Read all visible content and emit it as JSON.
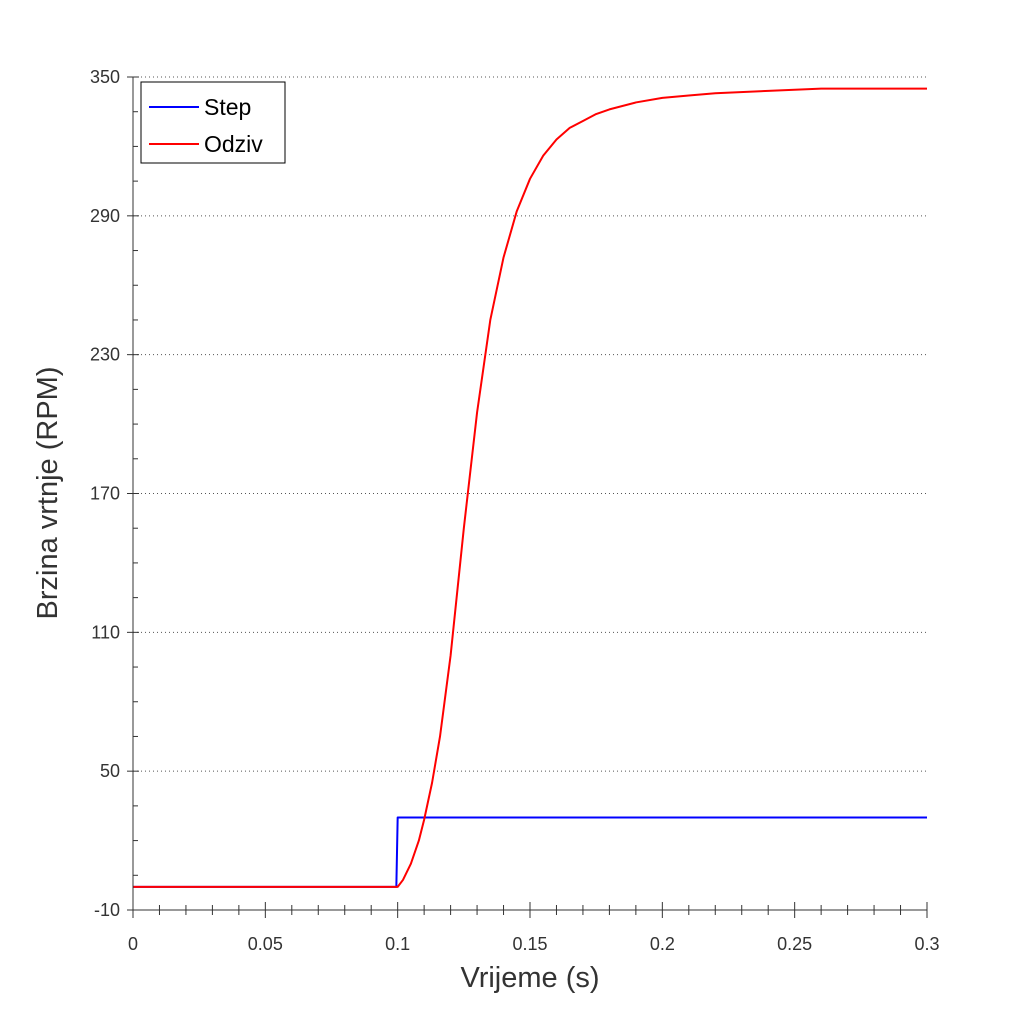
{
  "chart_data": {
    "type": "line",
    "title": "",
    "xlabel": "Vrijeme (s)",
    "ylabel": "Brzina vrtnje (RPM)",
    "xlim": [
      0,
      0.3
    ],
    "ylim": [
      -10,
      350
    ],
    "xticks": [
      0,
      0.05,
      0.1,
      0.15,
      0.2,
      0.25,
      0.3
    ],
    "xtick_labels": [
      "0",
      "0.05",
      "0.1",
      "0.15",
      "0.2",
      "0.25",
      "0.3"
    ],
    "yticks": [
      -10,
      50,
      110,
      170,
      230,
      290,
      350
    ],
    "ytick_labels": [
      "-10",
      "50",
      "110",
      "170",
      "230",
      "290",
      "350"
    ],
    "grid": "horizontal-dotted",
    "legend": {
      "position": "top-left",
      "entries": [
        "Step",
        "Odziv"
      ]
    },
    "series": [
      {
        "name": "Step",
        "color": "#0000ff",
        "x": [
          0,
          0.0995,
          0.1,
          0.3
        ],
        "y": [
          0,
          0,
          30,
          30
        ]
      },
      {
        "name": "Odziv",
        "color": "#ff0000",
        "x": [
          0,
          0.1,
          0.102,
          0.105,
          0.108,
          0.11,
          0.113,
          0.116,
          0.12,
          0.125,
          0.13,
          0.135,
          0.14,
          0.145,
          0.15,
          0.155,
          0.16,
          0.165,
          0.17,
          0.175,
          0.18,
          0.19,
          0.2,
          0.21,
          0.22,
          0.24,
          0.26,
          0.28,
          0.3
        ],
        "y": [
          0,
          0,
          3,
          10,
          20,
          29,
          45,
          65,
          100,
          155,
          205,
          245,
          272,
          292,
          306,
          316,
          323,
          328,
          331,
          334,
          336,
          339,
          341,
          342,
          343,
          344,
          345,
          345,
          345
        ]
      }
    ]
  }
}
